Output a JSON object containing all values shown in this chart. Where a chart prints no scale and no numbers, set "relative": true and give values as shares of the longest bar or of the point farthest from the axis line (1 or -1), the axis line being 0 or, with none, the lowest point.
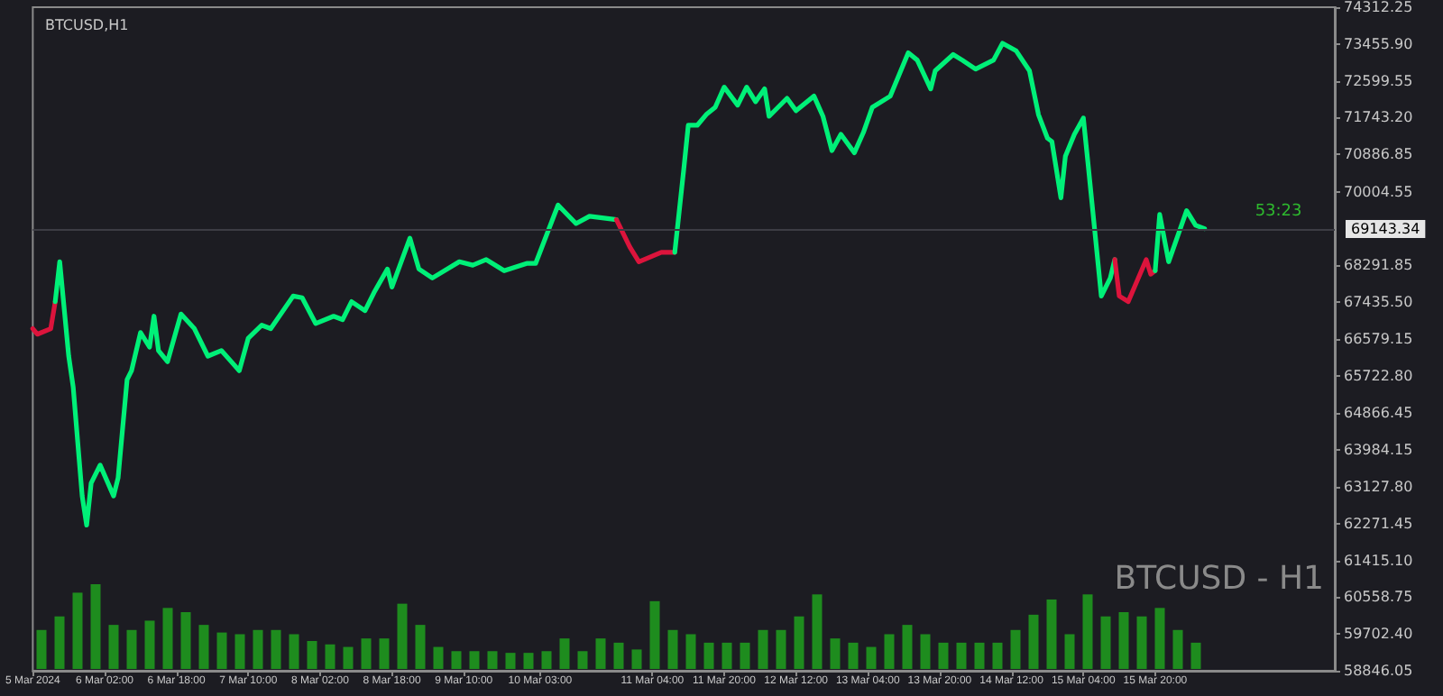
{
  "chart_data": [
    {
      "type": "line",
      "title": "BTCUSD,H1",
      "annotations": [
        "53:23",
        "BTCUSD - H1"
      ],
      "series": [
        {
          "color": "#dc143c",
          "x": [
            "2024-03-05T10:00",
            "2024-03-05T11:00",
            "2024-03-05T14:00",
            "2024-03-05T15:00"
          ],
          "values": [
            66820,
            66690,
            66820,
            67450
          ]
        },
        {
          "color": "#00f078",
          "x": [
            "2024-03-05T15:00",
            "2024-03-05T16:00",
            "2024-03-05T18:00",
            "2024-03-05T19:00",
            "2024-03-05T21:00",
            "2024-03-05T22:00",
            "2024-03-05T23:00",
            "2024-03-06T01:00",
            "2024-03-06T04:00",
            "2024-03-06T05:00",
            "2024-03-06T07:00",
            "2024-03-06T08:00",
            "2024-03-06T10:00",
            "2024-03-06T12:00",
            "2024-03-06T13:00",
            "2024-03-06T14:00",
            "2024-03-06T16:00",
            "2024-03-06T19:00",
            "2024-03-06T22:00",
            "2024-03-07T01:00",
            "2024-03-07T04:00",
            "2024-03-07T08:00",
            "2024-03-07T10:00",
            "2024-03-07T13:00",
            "2024-03-07T15:00",
            "2024-03-07T20:00",
            "2024-03-07T22:00",
            "2024-03-08T01:00",
            "2024-03-08T05:00",
            "2024-03-08T07:00",
            "2024-03-08T09:00",
            "2024-03-08T12:00",
            "2024-03-08T14:00",
            "2024-03-08T17:00",
            "2024-03-08T18:00",
            "2024-03-08T22:00",
            "2024-03-09T00:00",
            "2024-03-09T03:00",
            "2024-03-09T09:00",
            "2024-03-09T12:00",
            "2024-03-09T15:00",
            "2024-03-09T19:00",
            "2024-03-10T00:00",
            "2024-03-10T02:00",
            "2024-03-10T07:00",
            "2024-03-10T11:00",
            "2024-03-10T14:00",
            "2024-03-10T20:00"
          ],
          "values": [
            67450,
            68380,
            66180,
            65460,
            62920,
            62240,
            63220,
            63640,
            62920,
            63340,
            65630,
            65840,
            66730,
            66390,
            67110,
            66310,
            66050,
            67160,
            66820,
            66180,
            66310,
            65840,
            66600,
            66900,
            66820,
            67580,
            67540,
            66940,
            67110,
            67030,
            67450,
            67240,
            67660,
            68210,
            67790,
            68930,
            68210,
            68000,
            68380,
            68300,
            68430,
            68170,
            68340,
            68340,
            69700,
            69270,
            69440,
            69360
          ]
        },
        {
          "color": "#dc143c",
          "x": [
            "2024-03-10T20:00",
            "2024-03-10T23:00",
            "2024-03-11T01:00",
            "2024-03-11T06:00",
            "2024-03-11T09:00"
          ],
          "values": [
            69360,
            68720,
            68380,
            68600,
            68600
          ]
        },
        {
          "color": "#00f078",
          "x": [
            "2024-03-11T09:00",
            "2024-03-11T11:00",
            "2024-03-11T12:00",
            "2024-03-11T14:00",
            "2024-03-11T16:00",
            "2024-03-11T18:00",
            "2024-03-11T20:00",
            "2024-03-11T23:00",
            "2024-03-12T01:00",
            "2024-03-12T03:00",
            "2024-03-12T05:00",
            "2024-03-12T06:00",
            "2024-03-12T10:00",
            "2024-03-12T12:00",
            "2024-03-12T16:00",
            "2024-03-12T18:00",
            "2024-03-12T20:00",
            "2024-03-12T22:00",
            "2024-03-13T01:00",
            "2024-03-13T03:00",
            "2024-03-13T05:00",
            "2024-03-13T09:00",
            "2024-03-13T13:00",
            "2024-03-13T15:00",
            "2024-03-13T18:00",
            "2024-03-13T19:00",
            "2024-03-13T23:00",
            "2024-03-14T01:00",
            "2024-03-14T04:00",
            "2024-03-14T08:00",
            "2024-03-14T10:00",
            "2024-03-14T13:00",
            "2024-03-14T16:00",
            "2024-03-14T18:00",
            "2024-03-14T20:00",
            "2024-03-14T21:00",
            "2024-03-14T23:00",
            "2024-03-15T00:00",
            "2024-03-15T02:00",
            "2024-03-15T04:00",
            "2024-03-15T05:00",
            "2024-03-15T08:00",
            "2024-03-15T10:00",
            "2024-03-15T11:00"
          ],
          "values": [
            68600,
            70540,
            71560,
            71560,
            71810,
            71980,
            72450,
            72030,
            72450,
            72110,
            72410,
            71770,
            72190,
            71900,
            72240,
            71770,
            70970,
            71350,
            70920,
            71390,
            71980,
            72240,
            73250,
            73080,
            72410,
            72830,
            73210,
            73080,
            72870,
            73080,
            73470,
            73300,
            72830,
            71810,
            71260,
            71180,
            69870,
            70840,
            71350,
            71730,
            70710,
            67580,
            68000,
            68430
          ]
        },
        {
          "color": "#dc143c",
          "x": [
            "2024-03-15T11:00",
            "2024-03-15T12:00",
            "2024-03-15T14:00",
            "2024-03-15T18:00",
            "2024-03-15T19:00",
            "2024-03-15T20:00"
          ],
          "values": [
            68430,
            67580,
            67450,
            68430,
            68090,
            68170
          ]
        },
        {
          "color": "#00f078",
          "x": [
            "2024-03-15T20:00",
            "2024-03-15T21:00",
            "2024-03-15T23:00",
            "2024-03-16T03:00",
            "2024-03-16T05:00",
            "2024-03-16T07:00"
          ],
          "values": [
            68170,
            69480,
            68380,
            69570,
            69230,
            69150
          ]
        }
      ],
      "xlim": [
        "2024-03-05T10:00",
        "2024-03-17T12:00"
      ],
      "xticks": [
        {
          "value": "2024-03-05T10:00",
          "label": "5 Mar 2024"
        },
        {
          "value": "2024-03-06T02:00",
          "label": "6 Mar 02:00"
        },
        {
          "value": "2024-03-06T18:00",
          "label": "6 Mar 18:00"
        },
        {
          "value": "2024-03-07T10:00",
          "label": "7 Mar 10:00"
        },
        {
          "value": "2024-03-08T02:00",
          "label": "8 Mar 02:00"
        },
        {
          "value": "2024-03-08T18:00",
          "label": "8 Mar 18:00"
        },
        {
          "value": "2024-03-09T10:00",
          "label": "9 Mar 10:00"
        },
        {
          "value": "2024-03-10T03:00",
          "label": "10 Mar 03:00"
        },
        {
          "value": "2024-03-11T04:00",
          "label": "11 Mar 04:00"
        },
        {
          "value": "2024-03-11T20:00",
          "label": "11 Mar 20:00"
        },
        {
          "value": "2024-03-12T12:00",
          "label": "12 Mar 12:00"
        },
        {
          "value": "2024-03-13T04:00",
          "label": "13 Mar 04:00"
        },
        {
          "value": "2024-03-13T20:00",
          "label": "13 Mar 20:00"
        },
        {
          "value": "2024-03-14T12:00",
          "label": "14 Mar 12:00"
        },
        {
          "value": "2024-03-15T04:00",
          "label": "15 Mar 04:00"
        },
        {
          "value": "2024-03-15T20:00",
          "label": "15 Mar 20:00"
        }
      ],
      "ylim": [
        58846.05,
        74312.25
      ],
      "yticks": [
        74312.25,
        {
          "value": 73455.9,
          "label": "73455.90"
        },
        72599.55,
        {
          "value": 71743.2,
          "label": "71743.20"
        },
        70886.85,
        70004.55,
        68291.85,
        {
          "value": 67435.5,
          "label": "67435.50"
        },
        66579.15,
        {
          "value": 65722.8,
          "label": "65722.80"
        },
        64866.45,
        63984.15,
        {
          "value": 63127.8,
          "label": "63127.80"
        },
        62271.45,
        {
          "value": 61415.1,
          "label": "61415.10"
        },
        60558.75,
        {
          "value": 59702.4,
          "label": "59702.40"
        },
        58846.05
      ],
      "ref_lines": [
        {
          "axis": "y",
          "value": 69143.34,
          "label": "69143.34",
          "color": "#3c3c44"
        }
      ]
    },
    {
      "type": "bar",
      "relative": true,
      "color": "#1e8c1e",
      "categories": [
        null,
        null,
        null,
        null,
        null,
        null,
        null,
        null,
        null,
        null,
        null,
        null,
        null,
        null,
        null,
        null,
        null,
        null,
        null,
        null,
        null,
        null,
        null,
        null,
        null,
        null,
        null,
        null,
        null,
        null,
        null,
        null,
        null,
        null,
        null,
        null,
        null,
        null,
        null,
        null,
        null,
        null,
        null,
        null,
        null,
        null,
        null,
        null,
        null,
        null,
        null,
        null,
        null,
        null,
        null,
        null,
        null,
        null,
        null,
        null,
        null,
        null,
        null,
        null,
        null
      ],
      "values": [
        0.46,
        0.62,
        0.9,
        1,
        0.52,
        0.46,
        0.57,
        0.72,
        0.67,
        0.52,
        0.43,
        0.41,
        0.46,
        0.46,
        0.41,
        0.33,
        0.29,
        0.26,
        0.36,
        0.36,
        0.77,
        0.52,
        0.26,
        0.21,
        0.21,
        0.21,
        0.19,
        0.19,
        0.21,
        0.36,
        0.21,
        0.36,
        0.31,
        0.23,
        0.8,
        0.46,
        0.41,
        0.31,
        0.31,
        0.31,
        0.46,
        0.46,
        0.62,
        0.88,
        0.36,
        0.31,
        0.26,
        0.41,
        0.52,
        0.41,
        0.31,
        0.31,
        0.31,
        0.31,
        0.46,
        0.64,
        0.82,
        0.41,
        0.88,
        0.62,
        0.67,
        0.62,
        0.72,
        0.46,
        0.31
      ]
    }
  ]
}
